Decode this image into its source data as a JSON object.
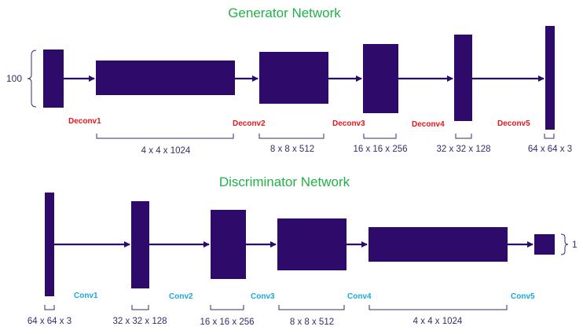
{
  "colors": {
    "block": "#2e0a6b",
    "title": "#22b04a",
    "deconv_label": "#e8151b",
    "conv_label": "#1aa8df",
    "dim_text": "#3a2a6a"
  },
  "generator": {
    "title": "Generator Network",
    "input_label": "100",
    "ops": [
      "Deconv1",
      "Deconv2",
      "Deconv3",
      "Deconv4",
      "Deconv5"
    ],
    "dims": [
      "4 x 4 x 1024",
      "8 x 8 x 512",
      "16 x 16 x 256",
      "32 x 32 x 128",
      "64 x 64 x 3"
    ]
  },
  "discriminator": {
    "title": "Discriminator Network",
    "output_label": "1",
    "ops": [
      "Conv1",
      "Conv2",
      "Conv3",
      "Conv4",
      "Conv5"
    ],
    "dims": [
      "64 x 64 x 3",
      "32 x 32 x 128",
      "16 x 16 x 256",
      "8 x 8 x 512",
      "4 x 4 x 1024"
    ]
  }
}
